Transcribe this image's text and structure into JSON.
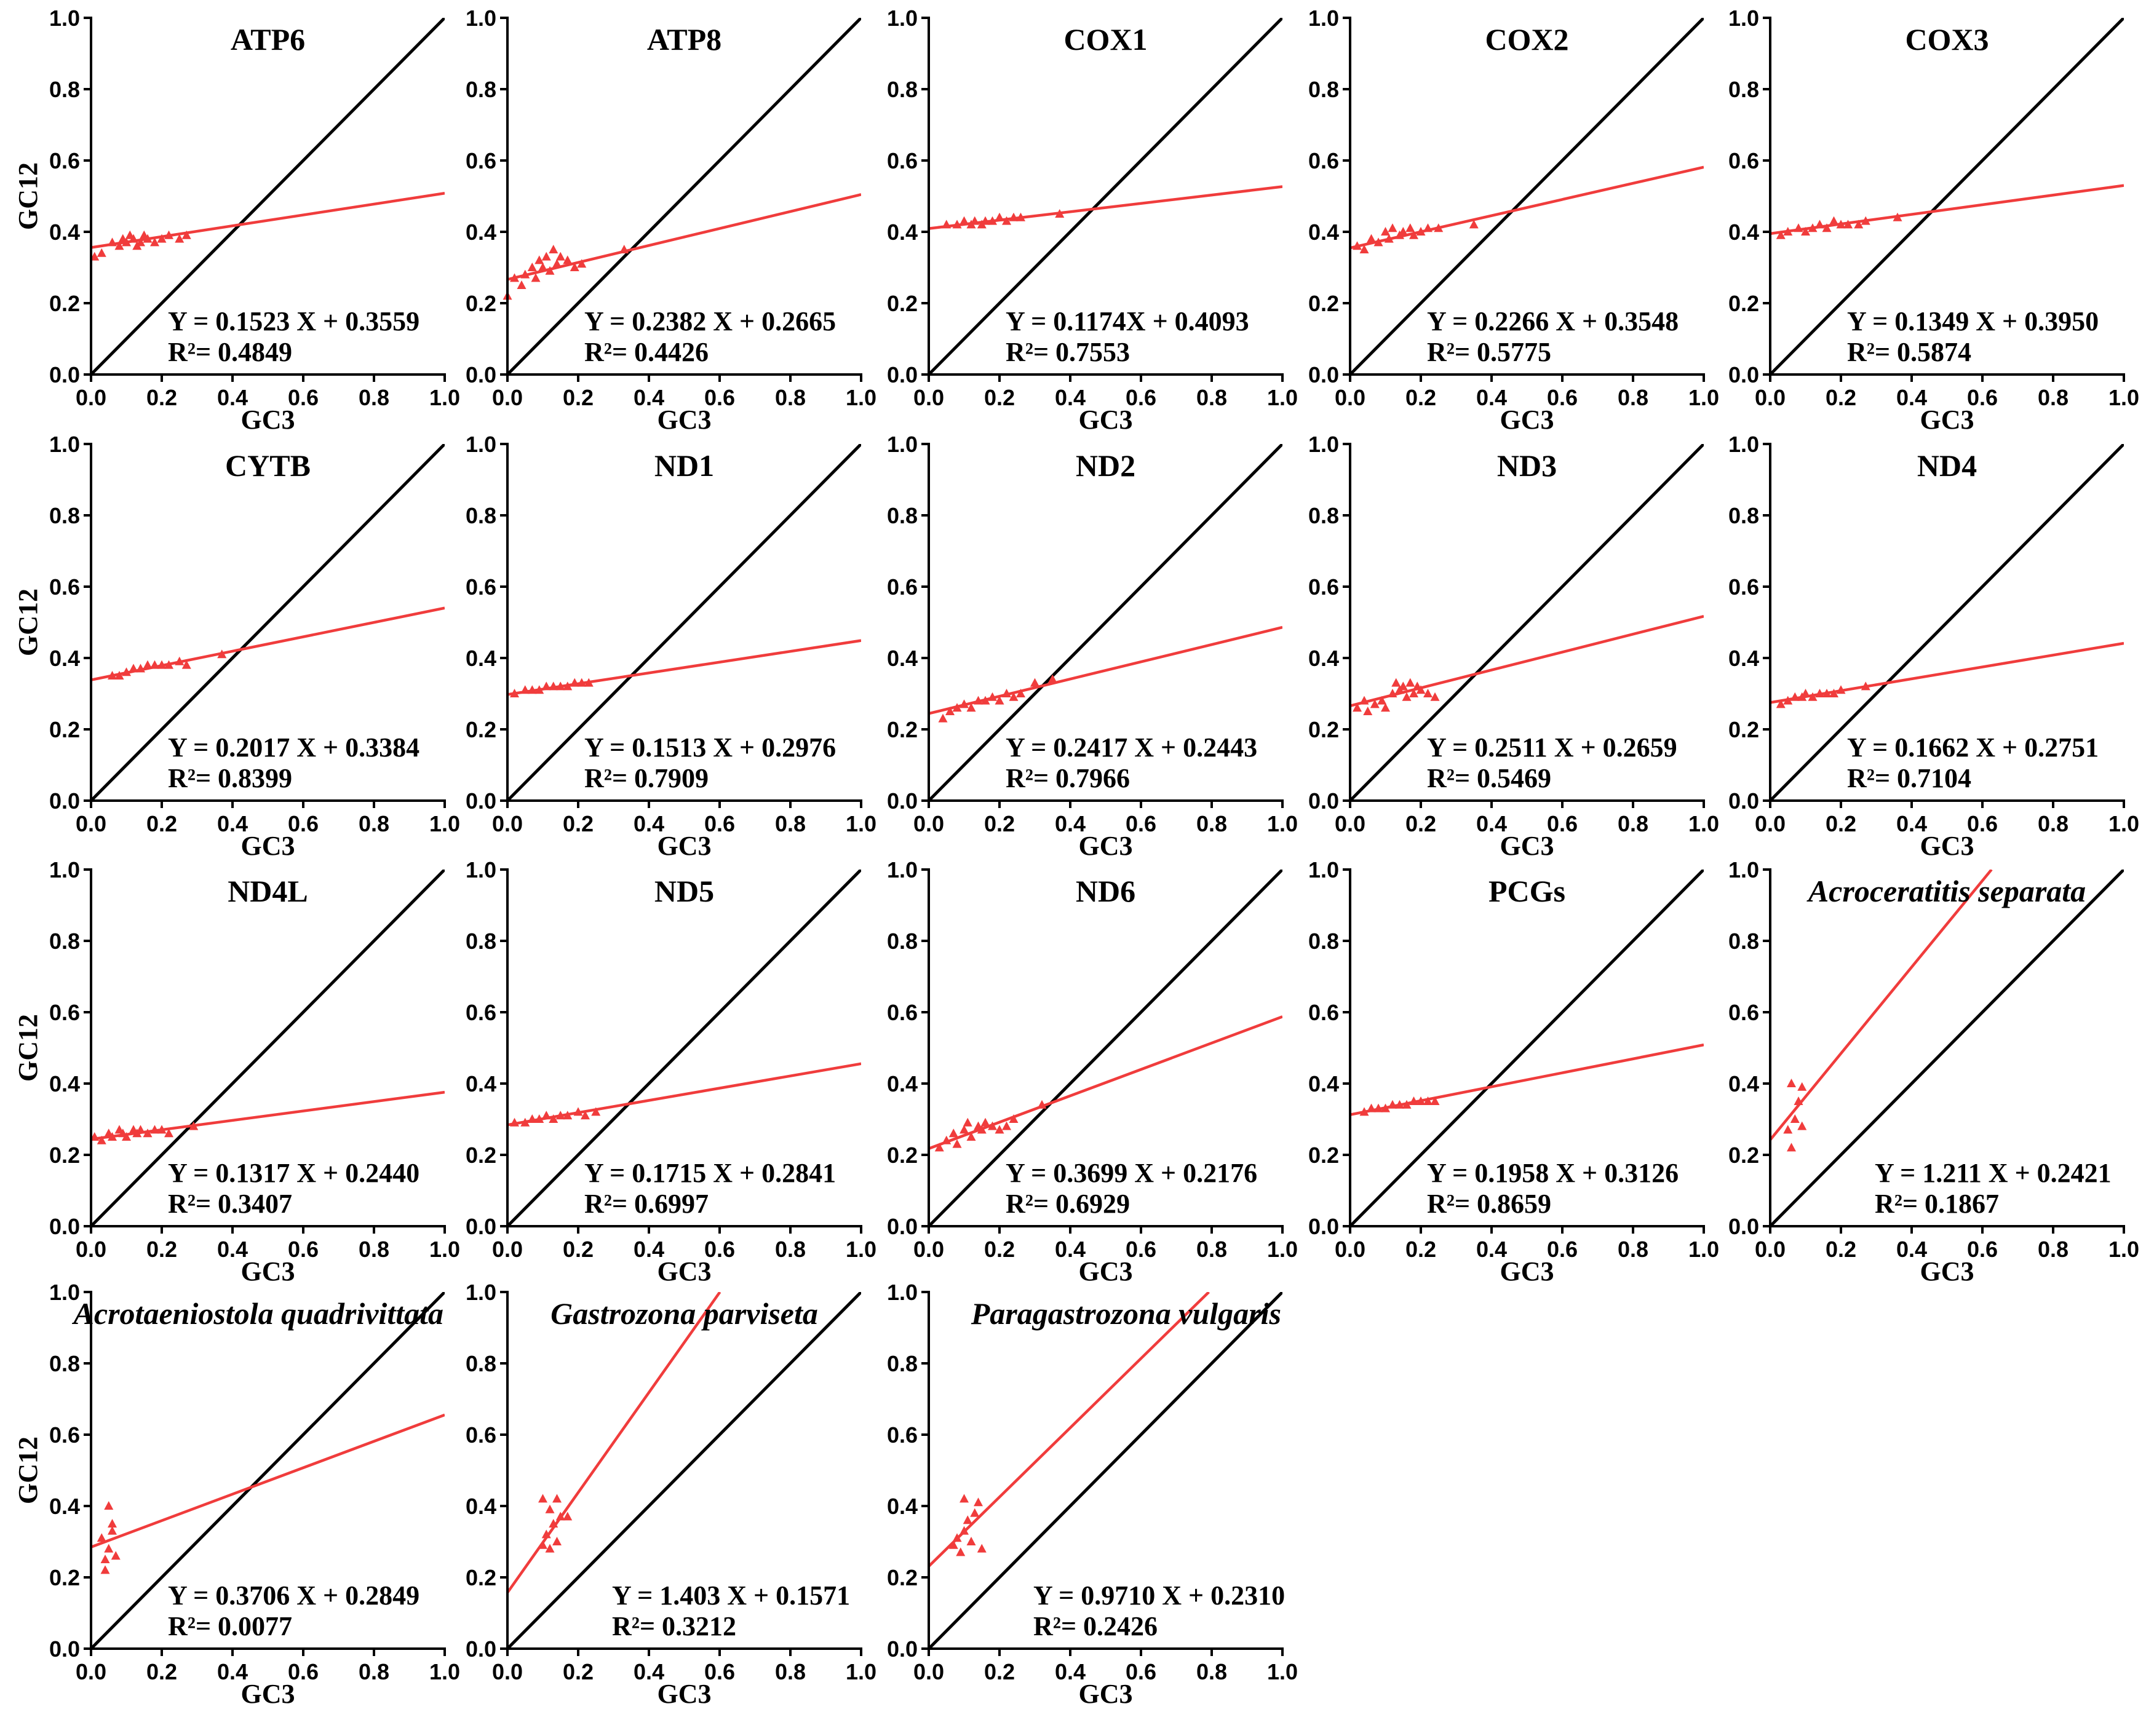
{
  "chart_data": [
    {
      "type": "scatter",
      "title": "ATP6",
      "title_italic": false,
      "equation": "Y = 0.1523 X + 0.3559",
      "r2": "R²= 0.4849",
      "slope": 0.1523,
      "intercept": 0.3559,
      "xlabel": "GC3",
      "ylabel": "GC12",
      "xlim": [
        0,
        1
      ],
      "ylim": [
        0,
        1
      ],
      "points": [
        [
          0.01,
          0.33
        ],
        [
          0.03,
          0.34
        ],
        [
          0.06,
          0.37
        ],
        [
          0.08,
          0.36
        ],
        [
          0.09,
          0.38
        ],
        [
          0.1,
          0.37
        ],
        [
          0.11,
          0.39
        ],
        [
          0.12,
          0.38
        ],
        [
          0.13,
          0.36
        ],
        [
          0.14,
          0.37
        ],
        [
          0.15,
          0.39
        ],
        [
          0.16,
          0.38
        ],
        [
          0.18,
          0.37
        ],
        [
          0.2,
          0.38
        ],
        [
          0.22,
          0.39
        ],
        [
          0.25,
          0.38
        ],
        [
          0.27,
          0.39
        ]
      ]
    },
    {
      "type": "scatter",
      "title": "ATP8",
      "title_italic": false,
      "equation": "Y = 0.2382 X + 0.2665",
      "r2": "R²= 0.4426",
      "slope": 0.2382,
      "intercept": 0.2665,
      "xlabel": "GC3",
      "ylabel": "GC12",
      "xlim": [
        0,
        1
      ],
      "ylim": [
        0,
        1
      ],
      "points": [
        [
          0.0,
          0.22
        ],
        [
          0.02,
          0.27
        ],
        [
          0.04,
          0.25
        ],
        [
          0.05,
          0.28
        ],
        [
          0.07,
          0.3
        ],
        [
          0.08,
          0.27
        ],
        [
          0.09,
          0.32
        ],
        [
          0.1,
          0.3
        ],
        [
          0.11,
          0.33
        ],
        [
          0.12,
          0.29
        ],
        [
          0.13,
          0.35
        ],
        [
          0.14,
          0.31
        ],
        [
          0.15,
          0.33
        ],
        [
          0.17,
          0.32
        ],
        [
          0.19,
          0.3
        ],
        [
          0.21,
          0.31
        ],
        [
          0.33,
          0.35
        ]
      ]
    },
    {
      "type": "scatter",
      "title": "COX1",
      "title_italic": false,
      "equation": "Y = 0.1174X + 0.4093",
      "r2": "R²= 0.7553",
      "slope": 0.1174,
      "intercept": 0.4093,
      "xlabel": "GC3",
      "ylabel": "GC12",
      "xlim": [
        0,
        1
      ],
      "ylim": [
        0,
        1
      ],
      "points": [
        [
          0.05,
          0.42
        ],
        [
          0.08,
          0.42
        ],
        [
          0.1,
          0.43
        ],
        [
          0.12,
          0.42
        ],
        [
          0.13,
          0.43
        ],
        [
          0.15,
          0.42
        ],
        [
          0.16,
          0.43
        ],
        [
          0.18,
          0.43
        ],
        [
          0.2,
          0.44
        ],
        [
          0.22,
          0.43
        ],
        [
          0.24,
          0.44
        ],
        [
          0.26,
          0.44
        ],
        [
          0.37,
          0.45
        ]
      ]
    },
    {
      "type": "scatter",
      "title": "COX2",
      "title_italic": false,
      "equation": "Y = 0.2266 X + 0.3548",
      "r2": "R²= 0.5775",
      "slope": 0.2266,
      "intercept": 0.3548,
      "xlabel": "GC3",
      "ylabel": "GC12",
      "xlim": [
        0,
        1
      ],
      "ylim": [
        0,
        1
      ],
      "points": [
        [
          0.02,
          0.36
        ],
        [
          0.04,
          0.35
        ],
        [
          0.06,
          0.38
        ],
        [
          0.08,
          0.37
        ],
        [
          0.1,
          0.4
        ],
        [
          0.11,
          0.38
        ],
        [
          0.12,
          0.41
        ],
        [
          0.14,
          0.39
        ],
        [
          0.15,
          0.4
        ],
        [
          0.17,
          0.41
        ],
        [
          0.18,
          0.39
        ],
        [
          0.2,
          0.4
        ],
        [
          0.22,
          0.41
        ],
        [
          0.25,
          0.41
        ],
        [
          0.35,
          0.42
        ]
      ]
    },
    {
      "type": "scatter",
      "title": "COX3",
      "title_italic": false,
      "equation": "Y = 0.1349 X + 0.3950",
      "r2": "R²= 0.5874",
      "slope": 0.1349,
      "intercept": 0.395,
      "xlabel": "GC3",
      "ylabel": "GC12",
      "xlim": [
        0,
        1
      ],
      "ylim": [
        0,
        1
      ],
      "points": [
        [
          0.03,
          0.39
        ],
        [
          0.05,
          0.4
        ],
        [
          0.08,
          0.41
        ],
        [
          0.1,
          0.4
        ],
        [
          0.12,
          0.41
        ],
        [
          0.14,
          0.42
        ],
        [
          0.16,
          0.41
        ],
        [
          0.18,
          0.43
        ],
        [
          0.2,
          0.42
        ],
        [
          0.22,
          0.42
        ],
        [
          0.25,
          0.42
        ],
        [
          0.27,
          0.43
        ],
        [
          0.36,
          0.44
        ]
      ]
    },
    {
      "type": "scatter",
      "title": "CYTB",
      "title_italic": false,
      "equation": "Y = 0.2017 X + 0.3384",
      "r2": "R²= 0.8399",
      "slope": 0.2017,
      "intercept": 0.3384,
      "xlabel": "GC3",
      "ylabel": "GC12",
      "xlim": [
        0,
        1
      ],
      "ylim": [
        0,
        1
      ],
      "points": [
        [
          0.06,
          0.35
        ],
        [
          0.08,
          0.35
        ],
        [
          0.1,
          0.36
        ],
        [
          0.12,
          0.37
        ],
        [
          0.14,
          0.37
        ],
        [
          0.16,
          0.38
        ],
        [
          0.18,
          0.38
        ],
        [
          0.2,
          0.38
        ],
        [
          0.22,
          0.38
        ],
        [
          0.25,
          0.39
        ],
        [
          0.27,
          0.38
        ],
        [
          0.37,
          0.41
        ]
      ]
    },
    {
      "type": "scatter",
      "title": "ND1",
      "title_italic": false,
      "equation": "Y = 0.1513 X + 0.2976",
      "r2": "R²= 0.7909",
      "slope": 0.1513,
      "intercept": 0.2976,
      "xlabel": "GC3",
      "ylabel": "GC12",
      "xlim": [
        0,
        1
      ],
      "ylim": [
        0,
        1
      ],
      "points": [
        [
          0.02,
          0.3
        ],
        [
          0.05,
          0.31
        ],
        [
          0.07,
          0.31
        ],
        [
          0.09,
          0.31
        ],
        [
          0.11,
          0.32
        ],
        [
          0.13,
          0.32
        ],
        [
          0.15,
          0.32
        ],
        [
          0.17,
          0.32
        ],
        [
          0.19,
          0.33
        ],
        [
          0.21,
          0.33
        ],
        [
          0.23,
          0.33
        ]
      ]
    },
    {
      "type": "scatter",
      "title": "ND2",
      "title_italic": false,
      "equation": "Y = 0.2417 X + 0.2443",
      "r2": "R²= 0.7966",
      "slope": 0.2417,
      "intercept": 0.2443,
      "xlabel": "GC3",
      "ylabel": "GC12",
      "xlim": [
        0,
        1
      ],
      "ylim": [
        0,
        1
      ],
      "points": [
        [
          0.04,
          0.23
        ],
        [
          0.06,
          0.25
        ],
        [
          0.08,
          0.26
        ],
        [
          0.1,
          0.27
        ],
        [
          0.12,
          0.26
        ],
        [
          0.14,
          0.28
        ],
        [
          0.16,
          0.28
        ],
        [
          0.18,
          0.29
        ],
        [
          0.2,
          0.28
        ],
        [
          0.22,
          0.3
        ],
        [
          0.24,
          0.29
        ],
        [
          0.26,
          0.3
        ],
        [
          0.3,
          0.33
        ],
        [
          0.35,
          0.34
        ]
      ]
    },
    {
      "type": "scatter",
      "title": "ND3",
      "title_italic": false,
      "equation": "Y = 0.2511 X + 0.2659",
      "r2": "R²= 0.5469",
      "slope": 0.2511,
      "intercept": 0.2659,
      "xlabel": "GC3",
      "ylabel": "GC12",
      "xlim": [
        0,
        1
      ],
      "ylim": [
        0,
        1
      ],
      "points": [
        [
          0.02,
          0.26
        ],
        [
          0.04,
          0.28
        ],
        [
          0.05,
          0.25
        ],
        [
          0.07,
          0.27
        ],
        [
          0.09,
          0.28
        ],
        [
          0.1,
          0.26
        ],
        [
          0.12,
          0.3
        ],
        [
          0.13,
          0.33
        ],
        [
          0.14,
          0.31
        ],
        [
          0.15,
          0.32
        ],
        [
          0.16,
          0.29
        ],
        [
          0.17,
          0.33
        ],
        [
          0.18,
          0.3
        ],
        [
          0.19,
          0.32
        ],
        [
          0.2,
          0.31
        ],
        [
          0.22,
          0.3
        ],
        [
          0.24,
          0.29
        ]
      ]
    },
    {
      "type": "scatter",
      "title": "ND4",
      "title_italic": false,
      "equation": "Y = 0.1662 X + 0.2751",
      "r2": "R²= 0.7104",
      "slope": 0.1662,
      "intercept": 0.2751,
      "xlabel": "GC3",
      "ylabel": "GC12",
      "xlim": [
        0,
        1
      ],
      "ylim": [
        0,
        1
      ],
      "points": [
        [
          0.03,
          0.27
        ],
        [
          0.05,
          0.28
        ],
        [
          0.07,
          0.29
        ],
        [
          0.09,
          0.29
        ],
        [
          0.1,
          0.3
        ],
        [
          0.12,
          0.29
        ],
        [
          0.14,
          0.3
        ],
        [
          0.16,
          0.3
        ],
        [
          0.18,
          0.3
        ],
        [
          0.2,
          0.31
        ],
        [
          0.27,
          0.32
        ]
      ]
    },
    {
      "type": "scatter",
      "title": "ND4L",
      "title_italic": false,
      "equation": "Y = 0.1317 X + 0.2440",
      "r2": "R²= 0.3407",
      "slope": 0.1317,
      "intercept": 0.244,
      "xlabel": "GC3",
      "ylabel": "GC12",
      "xlim": [
        0,
        1
      ],
      "ylim": [
        0,
        1
      ],
      "points": [
        [
          0.01,
          0.25
        ],
        [
          0.03,
          0.24
        ],
        [
          0.05,
          0.26
        ],
        [
          0.06,
          0.25
        ],
        [
          0.08,
          0.27
        ],
        [
          0.09,
          0.26
        ],
        [
          0.1,
          0.25
        ],
        [
          0.12,
          0.27
        ],
        [
          0.13,
          0.26
        ],
        [
          0.14,
          0.27
        ],
        [
          0.16,
          0.26
        ],
        [
          0.18,
          0.27
        ],
        [
          0.2,
          0.27
        ],
        [
          0.22,
          0.26
        ],
        [
          0.29,
          0.28
        ]
      ]
    },
    {
      "type": "scatter",
      "title": "ND5",
      "title_italic": false,
      "equation": "Y = 0.1715 X + 0.2841",
      "r2": "R²= 0.6997",
      "slope": 0.1715,
      "intercept": 0.2841,
      "xlabel": "GC3",
      "ylabel": "GC12",
      "xlim": [
        0,
        1
      ],
      "ylim": [
        0,
        1
      ],
      "points": [
        [
          0.02,
          0.29
        ],
        [
          0.05,
          0.29
        ],
        [
          0.07,
          0.3
        ],
        [
          0.09,
          0.3
        ],
        [
          0.11,
          0.31
        ],
        [
          0.13,
          0.3
        ],
        [
          0.15,
          0.31
        ],
        [
          0.17,
          0.31
        ],
        [
          0.2,
          0.32
        ],
        [
          0.22,
          0.31
        ],
        [
          0.25,
          0.32
        ]
      ]
    },
    {
      "type": "scatter",
      "title": "ND6",
      "title_italic": false,
      "equation": "Y = 0.3699 X + 0.2176",
      "r2": "R²= 0.6929",
      "slope": 0.3699,
      "intercept": 0.2176,
      "xlabel": "GC3",
      "ylabel": "GC12",
      "xlim": [
        0,
        1
      ],
      "ylim": [
        0,
        1
      ],
      "points": [
        [
          0.03,
          0.22
        ],
        [
          0.05,
          0.24
        ],
        [
          0.07,
          0.26
        ],
        [
          0.08,
          0.23
        ],
        [
          0.1,
          0.27
        ],
        [
          0.11,
          0.29
        ],
        [
          0.12,
          0.25
        ],
        [
          0.14,
          0.28
        ],
        [
          0.15,
          0.27
        ],
        [
          0.16,
          0.29
        ],
        [
          0.18,
          0.28
        ],
        [
          0.2,
          0.27
        ],
        [
          0.22,
          0.28
        ],
        [
          0.24,
          0.3
        ],
        [
          0.32,
          0.34
        ]
      ]
    },
    {
      "type": "scatter",
      "title": "PCGs",
      "title_italic": false,
      "equation": "Y = 0.1958 X + 0.3126",
      "r2": "R²= 0.8659",
      "slope": 0.1958,
      "intercept": 0.3126,
      "xlabel": "GC3",
      "ylabel": "GC12",
      "xlim": [
        0,
        1
      ],
      "ylim": [
        0,
        1
      ],
      "points": [
        [
          0.04,
          0.32
        ],
        [
          0.06,
          0.33
        ],
        [
          0.08,
          0.33
        ],
        [
          0.1,
          0.33
        ],
        [
          0.12,
          0.34
        ],
        [
          0.14,
          0.34
        ],
        [
          0.16,
          0.34
        ],
        [
          0.18,
          0.35
        ],
        [
          0.2,
          0.35
        ],
        [
          0.22,
          0.35
        ],
        [
          0.24,
          0.35
        ]
      ]
    },
    {
      "type": "scatter",
      "title": "Acroceratitis separata",
      "title_italic": true,
      "equation": "Y = 1.211 X + 0.2421",
      "r2": "R²= 0.1867",
      "slope": 1.211,
      "intercept": 0.2421,
      "xlabel": "GC3",
      "ylabel": "GC12",
      "xlim": [
        0,
        1
      ],
      "ylim": [
        0,
        1
      ],
      "points": [
        [
          0.05,
          0.27
        ],
        [
          0.06,
          0.4
        ],
        [
          0.06,
          0.22
        ],
        [
          0.07,
          0.3
        ],
        [
          0.08,
          0.35
        ],
        [
          0.09,
          0.39
        ],
        [
          0.09,
          0.28
        ]
      ]
    },
    {
      "type": "scatter",
      "title": "Acrotaeniostola quadrivittata",
      "title_italic": true,
      "equation": "Y = 0.3706 X + 0.2849",
      "r2": "R²= 0.0077",
      "slope": 0.3706,
      "intercept": 0.2849,
      "xlabel": "GC3",
      "ylabel": "GC12",
      "xlim": [
        0,
        1
      ],
      "ylim": [
        0,
        1
      ],
      "points": [
        [
          0.03,
          0.31
        ],
        [
          0.04,
          0.25
        ],
        [
          0.04,
          0.22
        ],
        [
          0.05,
          0.4
        ],
        [
          0.05,
          0.28
        ],
        [
          0.06,
          0.35
        ],
        [
          0.06,
          0.33
        ],
        [
          0.07,
          0.26
        ]
      ]
    },
    {
      "type": "scatter",
      "title": "Gastrozona parviseta",
      "title_italic": true,
      "equation": "Y = 1.403 X + 0.1571",
      "r2": "R²= 0.3212",
      "slope": 1.403,
      "intercept": 0.1571,
      "xlabel": "GC3",
      "ylabel": "GC12",
      "xlim": [
        0,
        1
      ],
      "ylim": [
        0,
        1
      ],
      "points": [
        [
          0.1,
          0.29
        ],
        [
          0.1,
          0.42
        ],
        [
          0.11,
          0.32
        ],
        [
          0.12,
          0.39
        ],
        [
          0.12,
          0.28
        ],
        [
          0.13,
          0.35
        ],
        [
          0.14,
          0.42
        ],
        [
          0.14,
          0.3
        ],
        [
          0.15,
          0.37
        ],
        [
          0.17,
          0.37
        ]
      ]
    },
    {
      "type": "scatter",
      "title": "Paragastrozona vulgaris",
      "title_italic": true,
      "equation": "Y = 0.9710 X + 0.2310",
      "r2": "R²= 0.2426",
      "slope": 0.971,
      "intercept": 0.231,
      "xlabel": "GC3",
      "ylabel": "GC12",
      "xlim": [
        0,
        1
      ],
      "ylim": [
        0,
        1
      ],
      "points": [
        [
          0.07,
          0.29
        ],
        [
          0.08,
          0.31
        ],
        [
          0.09,
          0.27
        ],
        [
          0.1,
          0.42
        ],
        [
          0.1,
          0.33
        ],
        [
          0.11,
          0.36
        ],
        [
          0.12,
          0.3
        ],
        [
          0.13,
          0.38
        ],
        [
          0.14,
          0.41
        ],
        [
          0.15,
          0.28
        ]
      ]
    }
  ],
  "colors": {
    "fit_line": "#f03c3c",
    "points": "#f03c3c",
    "diagonal": "#000000",
    "axis": "#000000"
  },
  "ticks": [
    "0.0",
    "0.2",
    "0.4",
    "0.6",
    "0.8",
    "1.0"
  ]
}
